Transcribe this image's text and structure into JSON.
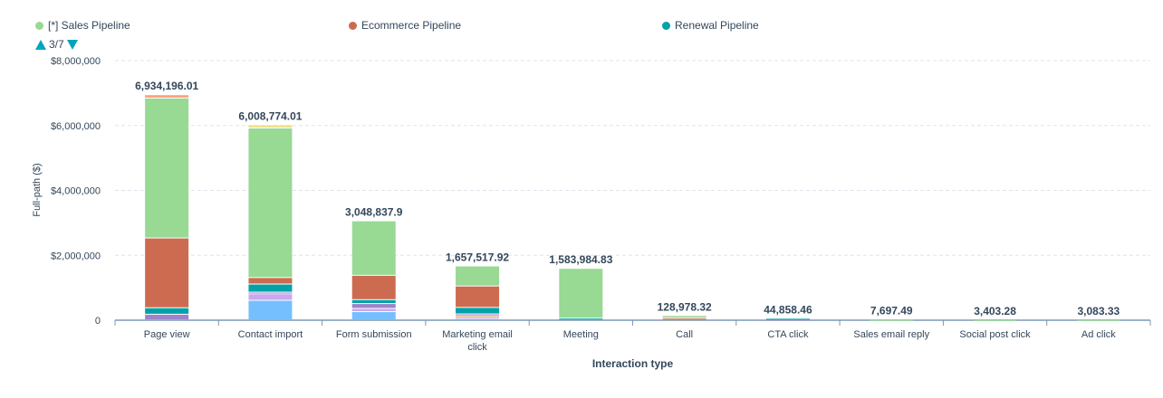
{
  "legend": {
    "items": [
      {
        "label": "[*] Sales Pipeline",
        "color": "#98d994"
      },
      {
        "label": "Ecommerce Pipeline",
        "color": "#cd6b51"
      },
      {
        "label": "Renewal Pipeline",
        "color": "#00a2a8"
      }
    ],
    "page": "3/7"
  },
  "chart_data": {
    "type": "bar",
    "stacked": true,
    "xlabel": "Interaction type",
    "ylabel": "Full-path ($)",
    "ylim": [
      0,
      8000000
    ],
    "yticks": [
      0,
      2000000,
      4000000,
      6000000,
      8000000
    ],
    "ytick_labels": [
      "0",
      "$2,000,000",
      "$4,000,000",
      "$6,000,000",
      "$8,000,000"
    ],
    "grid": true,
    "categories": [
      "Page view",
      "Contact import",
      "Form submission",
      "Marketing email click",
      "Meeting",
      "Call",
      "CTA click",
      "Sales email reply",
      "Social post click",
      "Ad click"
    ],
    "totals": [
      "6,934,196.01",
      "6,008,774.01",
      "3,048,837.9",
      "1,657,517.92",
      "1,583,984.83",
      "128,978.32",
      "44,858.46",
      "7,697.49",
      "3,403.28",
      "3,083.33"
    ],
    "series": [
      {
        "color": "#75bfff",
        "values": [
          0,
          600000,
          250000,
          30000,
          0,
          0,
          0,
          0,
          0,
          0
        ]
      },
      {
        "color": "#c8a8f0",
        "values": [
          0,
          200000,
          100000,
          40000,
          0,
          0,
          0,
          0,
          0,
          0
        ]
      },
      {
        "color": "#d4a04a",
        "values": [
          0,
          0,
          0,
          50000,
          0,
          30000,
          0,
          0,
          0,
          0
        ]
      },
      {
        "color": "#9b84c9",
        "values": [
          170000,
          50000,
          150000,
          60000,
          0,
          0,
          15000,
          0,
          0,
          0
        ]
      },
      {
        "name": "Renewal Pipeline",
        "color": "#00a2a8",
        "values": [
          200000,
          250000,
          120000,
          200000,
          50000,
          0,
          29858,
          0,
          0,
          0
        ]
      },
      {
        "name": "Ecommerce Pipeline",
        "color": "#cd6b51",
        "values": [
          2150000,
          200000,
          750000,
          660000,
          0,
          19000,
          0,
          0,
          0,
          0
        ]
      },
      {
        "name": "[*] Sales Pipeline",
        "color": "#98d994",
        "values": [
          4314196,
          4608774,
          1678838,
          617518,
          1533985,
          79978,
          0,
          7697,
          3403,
          3083
        ]
      },
      {
        "color": "#f0e08a",
        "values": [
          0,
          100000,
          0,
          0,
          0,
          0,
          0,
          0,
          0,
          0
        ]
      },
      {
        "color": "#ff9b7a",
        "values": [
          100000,
          0,
          0,
          0,
          0,
          0,
          0,
          0,
          0,
          0
        ]
      }
    ]
  }
}
